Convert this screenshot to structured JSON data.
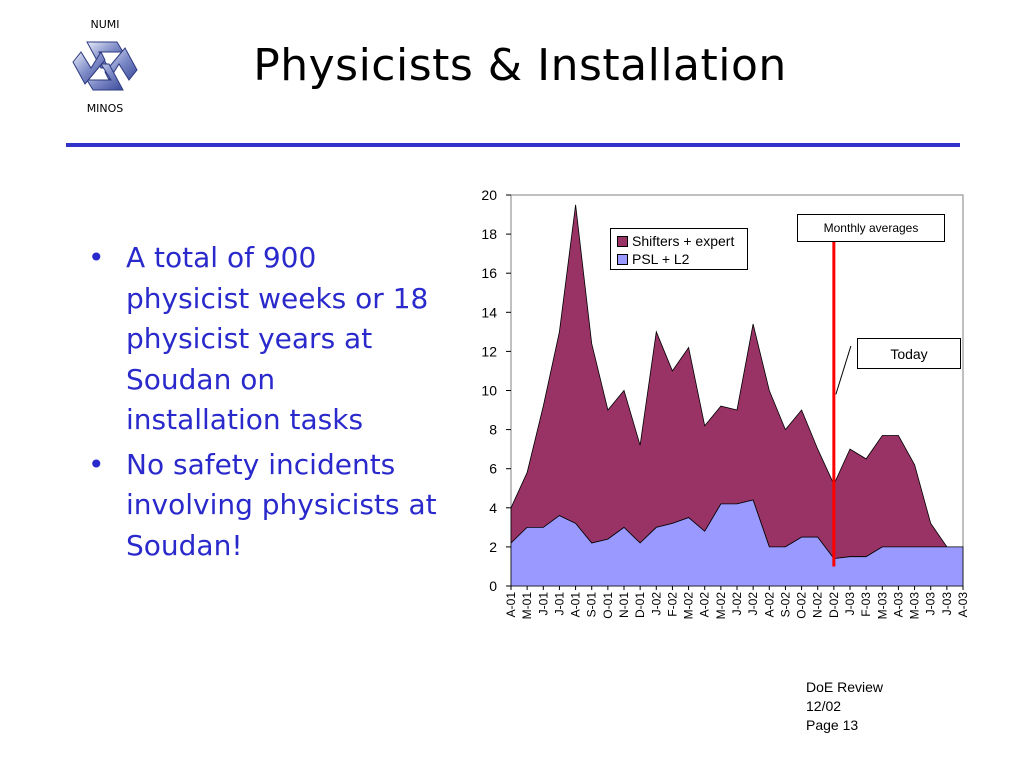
{
  "logo": {
    "top_text": "NUMI",
    "bottom_text": "MINOS"
  },
  "title": "Physicists & Installation",
  "bullets": [
    "A total of 900 physicist weeks or 18 physicist years at Soudan on installation tasks",
    "No safety incidents involving physicists at Soudan!"
  ],
  "footer": {
    "line1": "DoE Review",
    "line2": "12/02",
    "line3": "Page 13"
  },
  "callouts": {
    "monthly": "Monthly averages",
    "today": "Today"
  },
  "colors": {
    "title_rule": "#3333cc",
    "bullet_text": "#2a2acc",
    "shifters": "#993366",
    "psl": "#9999ff",
    "today_line": "#ff0000"
  },
  "chart_data": {
    "type": "area",
    "stacked": true,
    "categories": [
      "A-01",
      "M-01",
      "J-01",
      "J-01",
      "A-01",
      "S-01",
      "O-01",
      "N-01",
      "D-01",
      "J-02",
      "F-02",
      "M-02",
      "A-02",
      "M-02",
      "J-02",
      "J-02",
      "A-02",
      "S-02",
      "O-02",
      "N-02",
      "D-02",
      "J-03",
      "F-03",
      "M-03",
      "A-03",
      "M-03",
      "J-03",
      "J-03",
      "A-03"
    ],
    "series": [
      {
        "name": "PSL + L2",
        "values": [
          2.2,
          3.0,
          3.0,
          3.6,
          3.2,
          2.2,
          2.4,
          3.0,
          2.2,
          3.0,
          3.2,
          3.5,
          2.8,
          4.2,
          4.2,
          4.4,
          2.0,
          2.0,
          2.5,
          2.5,
          1.4,
          1.5,
          1.5,
          2.0,
          2.0,
          2.0,
          2.0,
          2.0,
          2.0
        ]
      },
      {
        "name": "Shifters + expert",
        "values": [
          1.8,
          2.8,
          6.2,
          9.4,
          16.3,
          10.2,
          6.6,
          7.0,
          5.0,
          10.0,
          7.8,
          8.7,
          5.4,
          5.0,
          4.8,
          9.0,
          8.0,
          6.0,
          6.5,
          4.5,
          3.8,
          5.5,
          5.0,
          5.7,
          5.7,
          4.2,
          1.2,
          0.0,
          0.0
        ]
      }
    ],
    "ylim": [
      0,
      20
    ],
    "yticks": [
      0,
      2,
      4,
      6,
      8,
      10,
      12,
      14,
      16,
      18,
      20
    ],
    "today_index": 20,
    "legend_position": "top-center",
    "grid": false
  }
}
